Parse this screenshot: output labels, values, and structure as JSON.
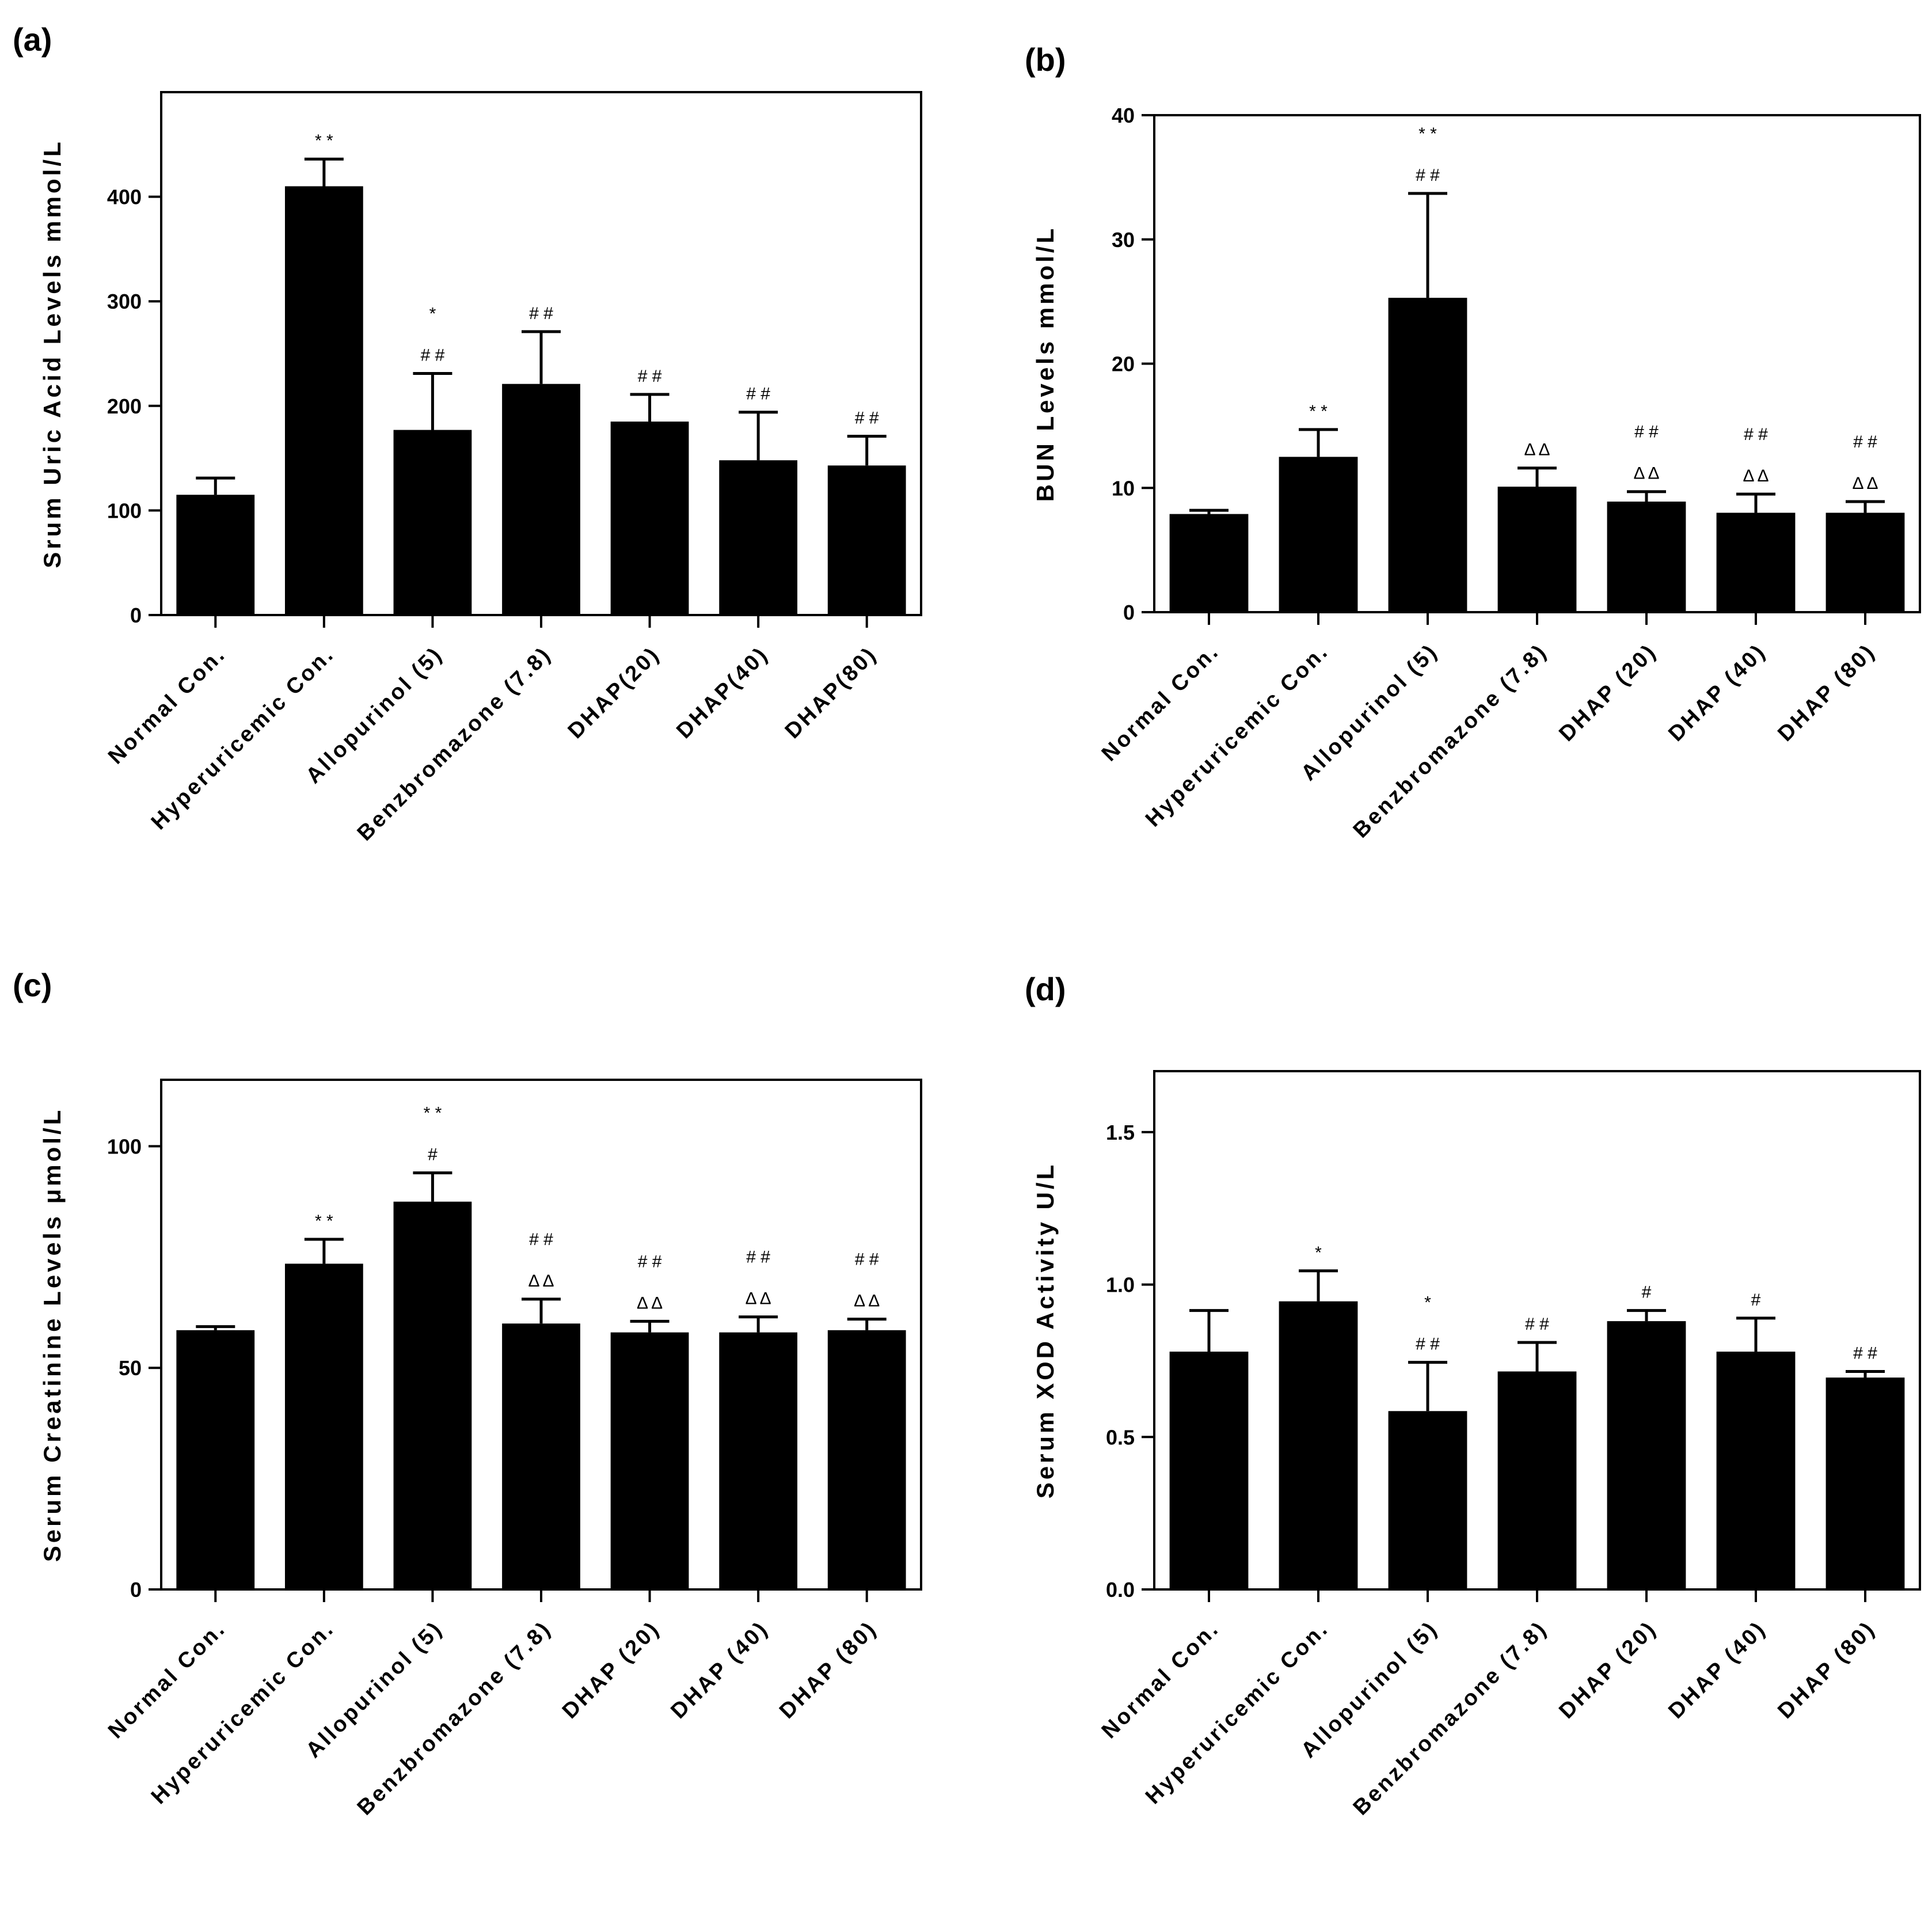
{
  "chart_data": [
    {
      "type": "bar",
      "panel": "(a)",
      "categories": [
        "Normal Con.",
        "Hyperuricemic Con.",
        "Allopurinol (5)",
        "Benzbromazone (7.8)",
        "DHAP(20)",
        "DHAP(40)",
        "DHAP(80)"
      ],
      "values": [
        115,
        410,
        177,
        221,
        185,
        148,
        143
      ],
      "errors": [
        16,
        26,
        54,
        50,
        26,
        46,
        28
      ],
      "annotations": [
        [],
        [
          "* *"
        ],
        [
          "*",
          "# #"
        ],
        [
          "# #"
        ],
        [
          "# #"
        ],
        [
          "# #"
        ],
        [
          "# #"
        ]
      ],
      "ylabel": "Srum Uric Acid Levels mmol/L",
      "yticks": [
        0,
        100,
        200,
        300,
        400
      ],
      "ylim": [
        0,
        500
      ]
    },
    {
      "type": "bar",
      "panel": "(b)",
      "categories": [
        "Normal Con.",
        "Hyperuricemic Con.",
        "Allopurinol (5)",
        "Benzbromazone (7.8)",
        "DHAP (20)",
        "DHAP (40)",
        "DHAP (80)"
      ],
      "values": [
        7.9,
        12.5,
        25.3,
        10.1,
        8.9,
        8.0,
        8.0
      ],
      "errors": [
        0.3,
        2.2,
        8.4,
        1.5,
        0.8,
        1.5,
        0.9
      ],
      "annotations": [
        [],
        [
          "* *"
        ],
        [
          "* *",
          "# #"
        ],
        [
          "Δ Δ"
        ],
        [
          "# #",
          "Δ Δ"
        ],
        [
          "# #",
          "Δ Δ"
        ],
        [
          "# #",
          "Δ Δ"
        ]
      ],
      "ylabel": "BUN Levels mmol/L",
      "yticks": [
        0,
        10,
        20,
        30,
        40
      ],
      "ylim": [
        0,
        40
      ]
    },
    {
      "type": "bar",
      "panel": "(c)",
      "categories": [
        "Normal Con.",
        "Hyperuricemic Con.",
        "Allopurinol (5)",
        "Benzbromazone (7.8)",
        "DHAP (20)",
        "DHAP (40)",
        "DHAP (80)"
      ],
      "values": [
        58.5,
        73.5,
        87.5,
        60,
        58,
        58,
        58.5
      ],
      "errors": [
        0.8,
        5.5,
        6.5,
        5.5,
        2.5,
        3.5,
        2.5
      ],
      "annotations": [
        [],
        [
          "* *"
        ],
        [
          "* *",
          "#"
        ],
        [
          "# #",
          "Δ Δ"
        ],
        [
          "# #",
          "Δ Δ"
        ],
        [
          "# #",
          "Δ Δ"
        ],
        [
          "# #",
          "Δ Δ"
        ]
      ],
      "ylabel": "Serum Creatinine Levels μmol/L",
      "yticks": [
        0,
        50,
        100
      ],
      "ylim": [
        0,
        115
      ]
    },
    {
      "type": "bar",
      "panel": "(d)",
      "categories": [
        "Normal Con.",
        "Hyperuricemic Con.",
        "Allopurinol (5)",
        "Benzbromazone (7.8)",
        "DHAP (20)",
        "DHAP (40)",
        "DHAP (80)"
      ],
      "values": [
        0.78,
        0.945,
        0.585,
        0.715,
        0.88,
        0.78,
        0.695
      ],
      "errors": [
        0.135,
        0.1,
        0.16,
        0.095,
        0.035,
        0.11,
        0.02
      ],
      "annotations": [
        [],
        [
          "*"
        ],
        [
          "*",
          "# #"
        ],
        [
          "# #"
        ],
        [
          "#"
        ],
        [
          "#"
        ],
        [
          "# #"
        ]
      ],
      "ylabel": "Serum XOD Activity U/L",
      "yticks": [
        "0.0",
        "0.5",
        "1.0",
        "1.5"
      ],
      "ylim": [
        0,
        1.7
      ]
    }
  ]
}
